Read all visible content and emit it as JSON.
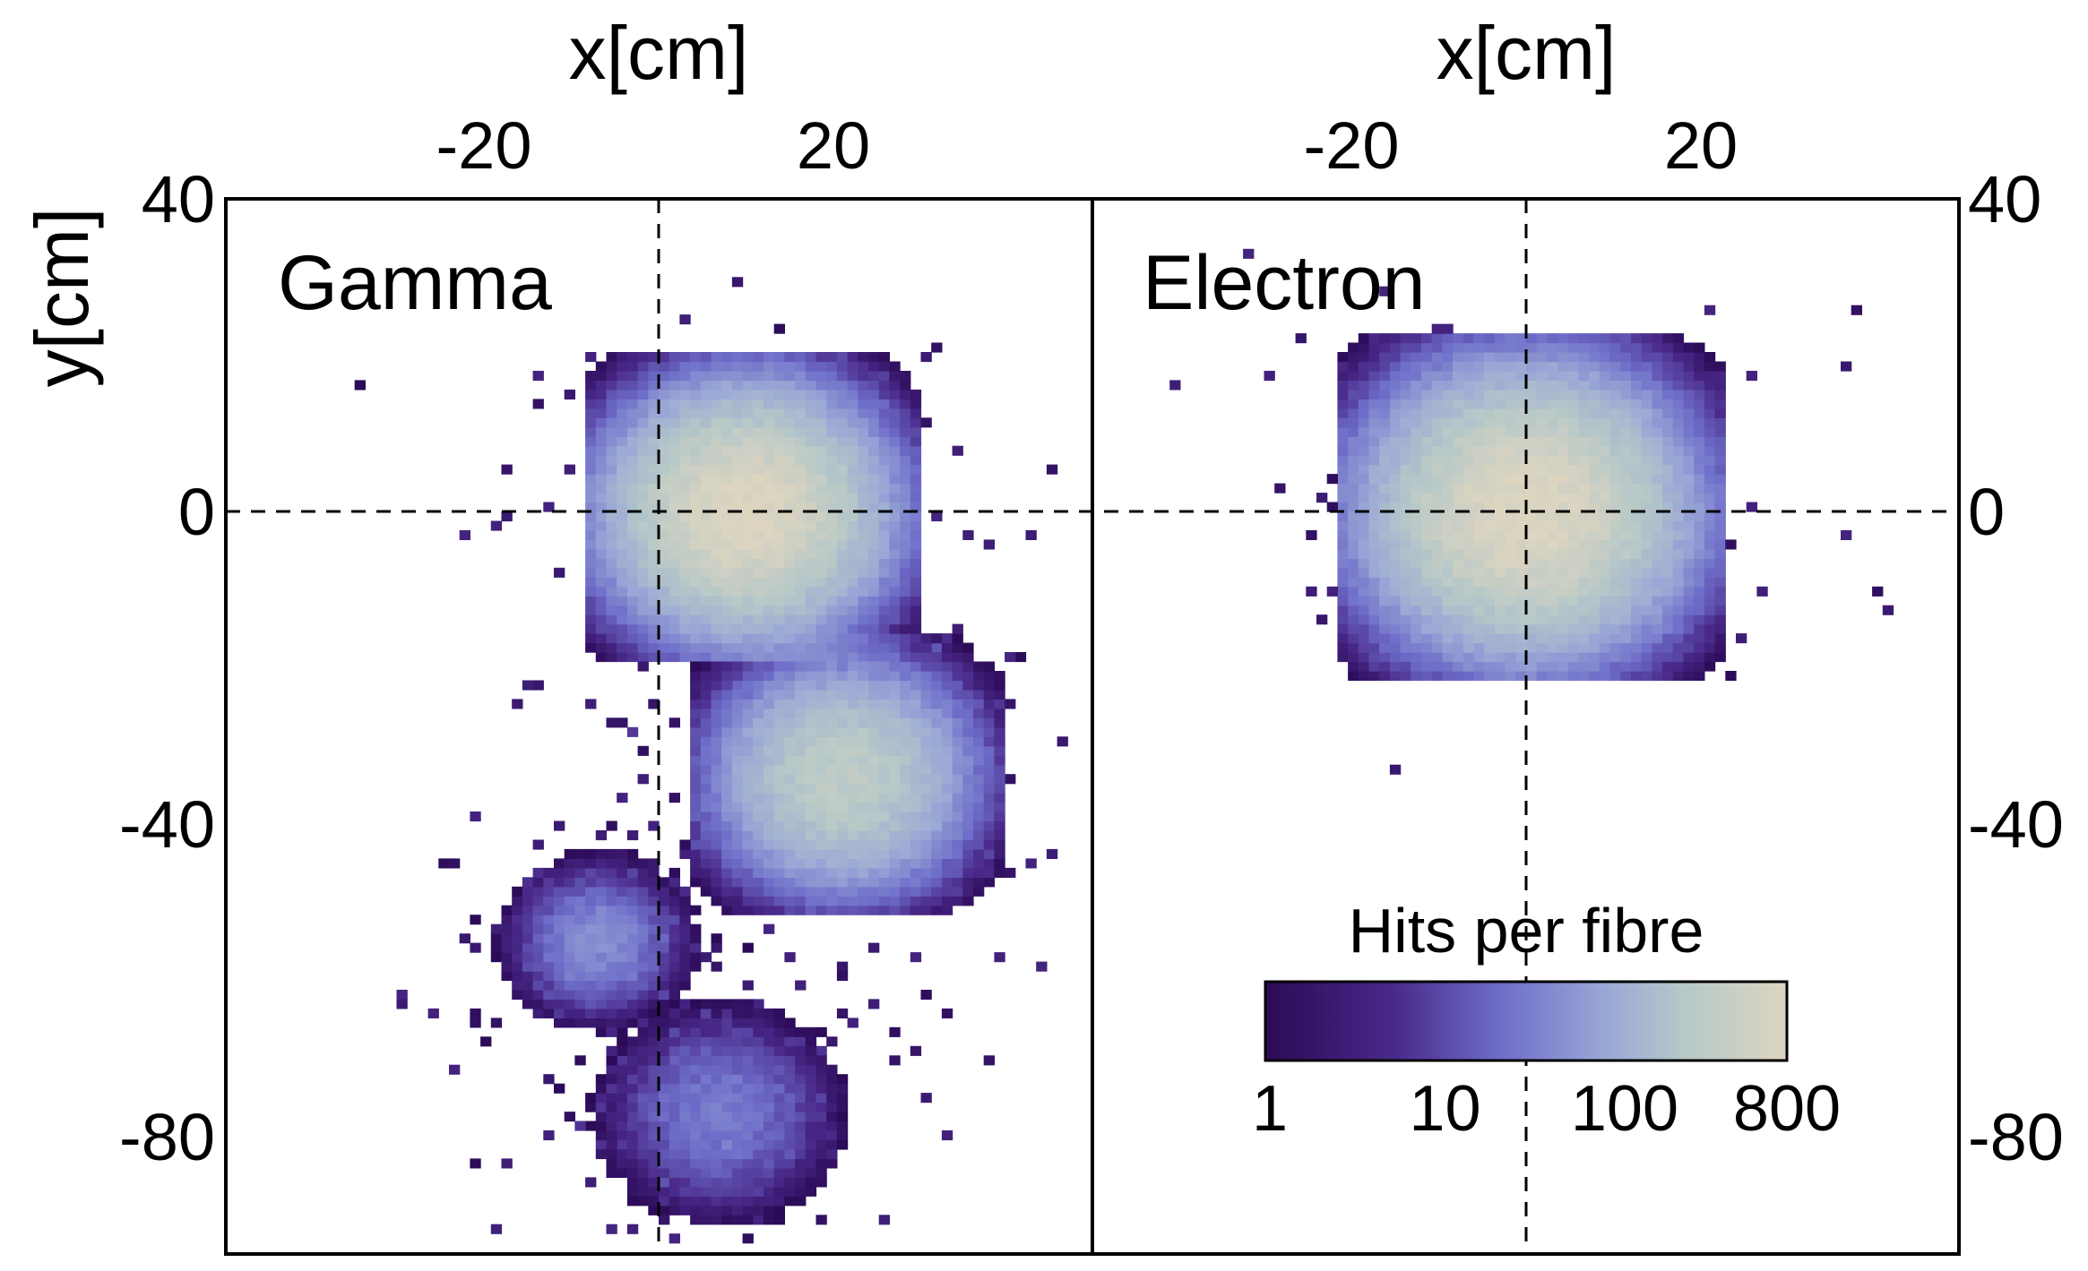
{
  "chart_data": {
    "type": "heatmap",
    "colormap": [
      "#2b0a57",
      "#4a2a8a",
      "#6e6dc9",
      "#9aa7d6",
      "#b6c8c8",
      "#ddd5c0"
    ],
    "xlabel": "x[cm]",
    "ylabel": "y[cm]",
    "xlim": [
      -50,
      50
    ],
    "ylim": [
      -95,
      40
    ],
    "xticks": [
      -20,
      20
    ],
    "yticks": [
      40,
      0,
      -40,
      -80
    ],
    "grid": false,
    "reference_lines": {
      "x": 0,
      "y": 0,
      "style": "dashed"
    },
    "panels": [
      {
        "label": "Gamma",
        "clusters": [
          {
            "x": 10,
            "y": 0,
            "spread": 7,
            "peak_hits": 800
          },
          {
            "x": 21,
            "y": -34,
            "spread": 6.5,
            "peak_hits": 300
          },
          {
            "x": -7,
            "y": -55,
            "spread": 4.5,
            "peak_hits": 30
          },
          {
            "x": 7,
            "y": -77,
            "spread": 6,
            "peak_hits": 20
          }
        ]
      },
      {
        "label": "Electron",
        "clusters": [
          {
            "x": 0,
            "y": 0,
            "spread": 8,
            "peak_hits": 800
          }
        ]
      }
    ],
    "colorbar": {
      "title": "Hits per fibre",
      "scale": "log",
      "range": [
        1,
        800
      ],
      "tick_values": [
        1,
        10,
        100,
        800
      ],
      "tick_labels": [
        "1",
        "10",
        "100",
        "800"
      ]
    }
  }
}
